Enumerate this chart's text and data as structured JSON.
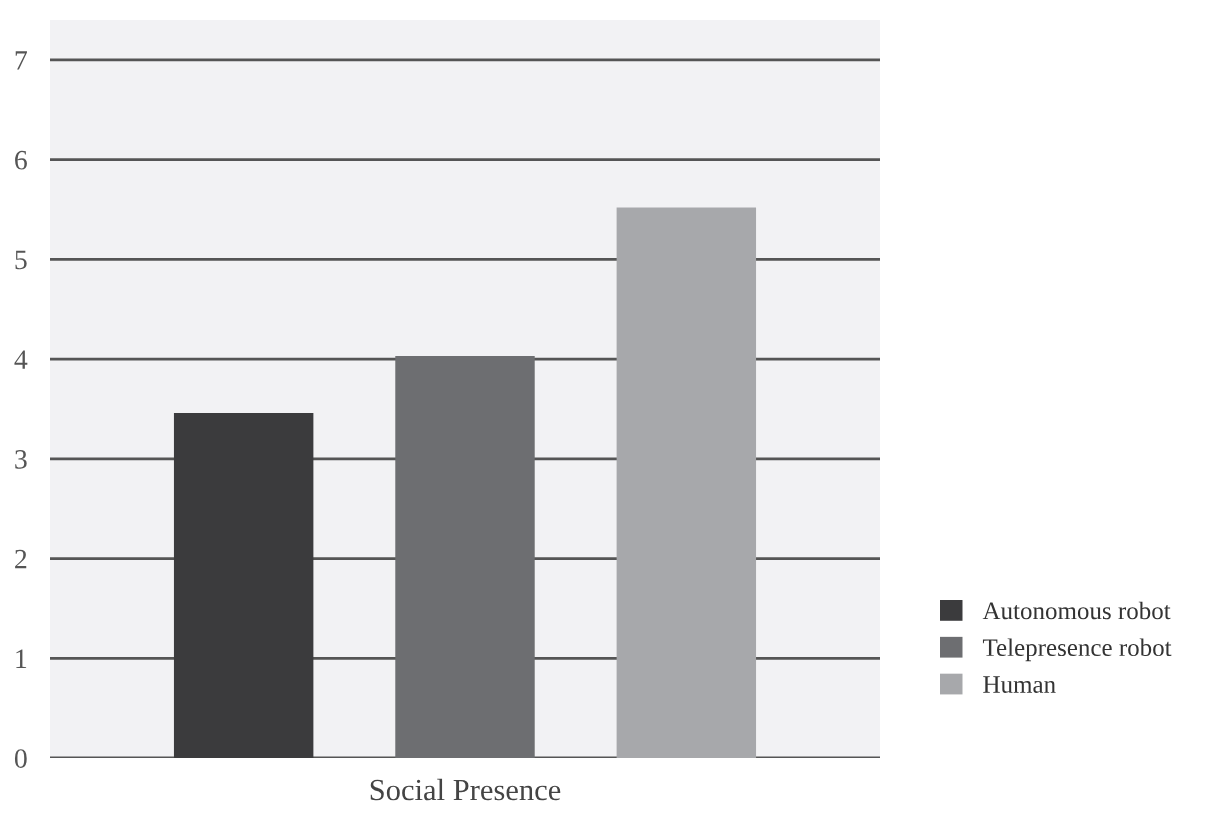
{
  "chart_data": {
    "type": "bar",
    "xlabel": "Social Presence",
    "categories": [
      null
    ],
    "series": [
      {
        "name": "Autonomous robot",
        "color": "#3b3b3d",
        "values": [
          3.46
        ]
      },
      {
        "name": "Telepresence robot",
        "color": "#6d6e71",
        "values": [
          4.03
        ]
      },
      {
        "name": "Human",
        "color": "#a7a8ab",
        "values": [
          5.52
        ]
      }
    ],
    "ylim": [
      0,
      7.4
    ],
    "yticks": [
      0,
      1,
      2,
      3,
      4,
      5,
      6,
      7
    ],
    "grid": "y",
    "legend": "bottom right"
  }
}
